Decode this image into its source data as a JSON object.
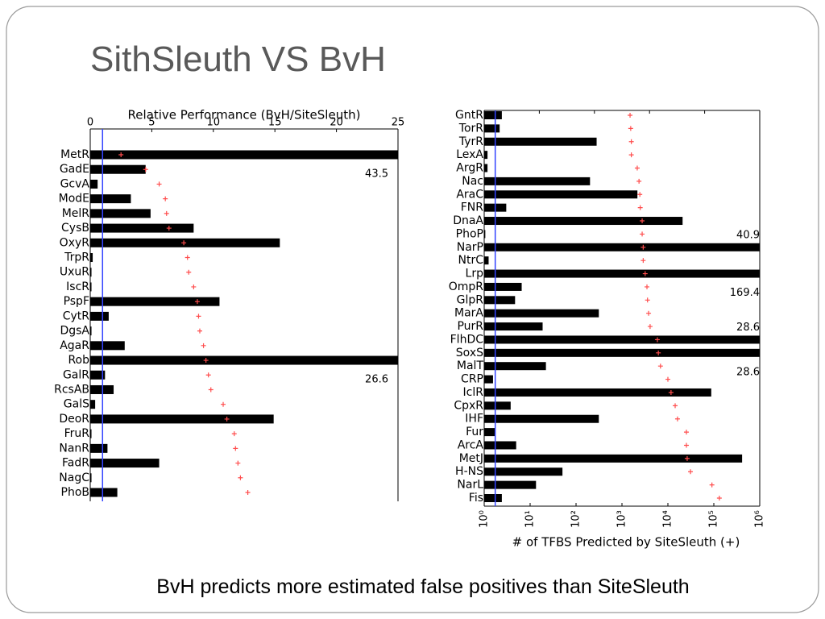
{
  "slide": {
    "title": "SithSleuth VS BvH",
    "caption": "BvH predicts more estimated false positives than SiteSleuth"
  },
  "chart_data": [
    {
      "type": "barh",
      "xlabel": "Relative Performance (BvH/SiteSleuth)",
      "categories": [
        "MetR",
        "GadE",
        "GcvA",
        "ModE",
        "MelR",
        "CysB",
        "OxyR",
        "TrpR",
        "UxuR",
        "IscR",
        "PspF",
        "CytR",
        "DgsA",
        "AgaR",
        "Rob",
        "GalR",
        "RcsAB",
        "GalS",
        "DeoR",
        "FruR",
        "NanR",
        "FadR",
        "NagC",
        "PhoB"
      ],
      "values": [
        43.5,
        4.5,
        0.6,
        3.3,
        4.9,
        8.4,
        15.4,
        0.2,
        0.1,
        0.1,
        10.5,
        1.5,
        0.1,
        2.8,
        26.6,
        1.2,
        1.9,
        0.4,
        14.9,
        0.1,
        1.4,
        5.6,
        0.1,
        2.2
      ],
      "marker_values": [
        2.5,
        4.5,
        5.6,
        6.1,
        6.2,
        6.4,
        7.6,
        7.9,
        8.0,
        8.4,
        8.7,
        8.8,
        8.9,
        9.2,
        9.4,
        9.6,
        9.8,
        10.8,
        11.1,
        11.7,
        11.8,
        12.0,
        12.2,
        12.8
      ],
      "xlim": [
        0,
        25
      ],
      "xticks": [
        0,
        5,
        10,
        15,
        20,
        25
      ],
      "top_tick_labels": true,
      "reference_x": 1,
      "color": "#000000",
      "marker_color": "#ff4d4d",
      "reference_color": "#3344ff"
    },
    {
      "type": "barh",
      "xlabel": "# of TFBS Predicted by SiteSleuth (+)",
      "categories": [
        "GntR",
        "TorR",
        "TyrR",
        "LexA",
        "ArgR",
        "Nac",
        "AraC",
        "FNR",
        "DnaA",
        "PhoP",
        "NarP",
        "NtrC",
        "Lrp",
        "OmpR",
        "GlpR",
        "MarA",
        "PurR",
        "FlhDC",
        "SoxS",
        "MalT",
        "CRP",
        "IclR",
        "CpxR",
        "IHF",
        "Fur",
        "ArcA",
        "MetJ",
        "H-NS",
        "NarL",
        "Fis"
      ],
      "values": [
        1.6,
        1.4,
        10.2,
        0.3,
        0.3,
        9.6,
        13.9,
        2.0,
        18.0,
        0.1,
        40.9,
        0.4,
        169.4,
        3.4,
        2.8,
        10.4,
        5.3,
        28.6,
        28.6,
        5.6,
        0.8,
        20.6,
        2.4,
        10.4,
        1.0,
        2.9,
        23.4,
        7.1,
        4.7,
        1.6
      ],
      "marker_values": [
        1500,
        1550,
        1600,
        1600,
        2150,
        2350,
        2450,
        2500,
        2750,
        2750,
        2900,
        2900,
        3200,
        3500,
        3600,
        3800,
        4100,
        5900,
        6200,
        6900,
        10000,
        11700,
        14400,
        16200,
        25300,
        25300,
        26300,
        31000,
        91000,
        132000
      ],
      "xlim": [
        0,
        25
      ],
      "xticks": [
        0,
        5,
        10,
        15,
        20,
        25
      ],
      "top_tick_labels": false,
      "x2lim": [
        1,
        1000000
      ],
      "x2log": true,
      "x2ticks": [
        {
          "value": 1,
          "label": "10⁰"
        },
        {
          "value": 10,
          "label": "10¹"
        },
        {
          "value": 100,
          "label": "10²"
        },
        {
          "value": 1000,
          "label": "10³"
        },
        {
          "value": 10000,
          "label": "10⁴"
        },
        {
          "value": 100000,
          "label": "10⁵"
        },
        {
          "value": 1000000,
          "label": "10⁶"
        }
      ],
      "reference_x": 1,
      "color": "#000000",
      "marker_color": "#ff4d4d",
      "reference_color": "#3344ff"
    }
  ]
}
